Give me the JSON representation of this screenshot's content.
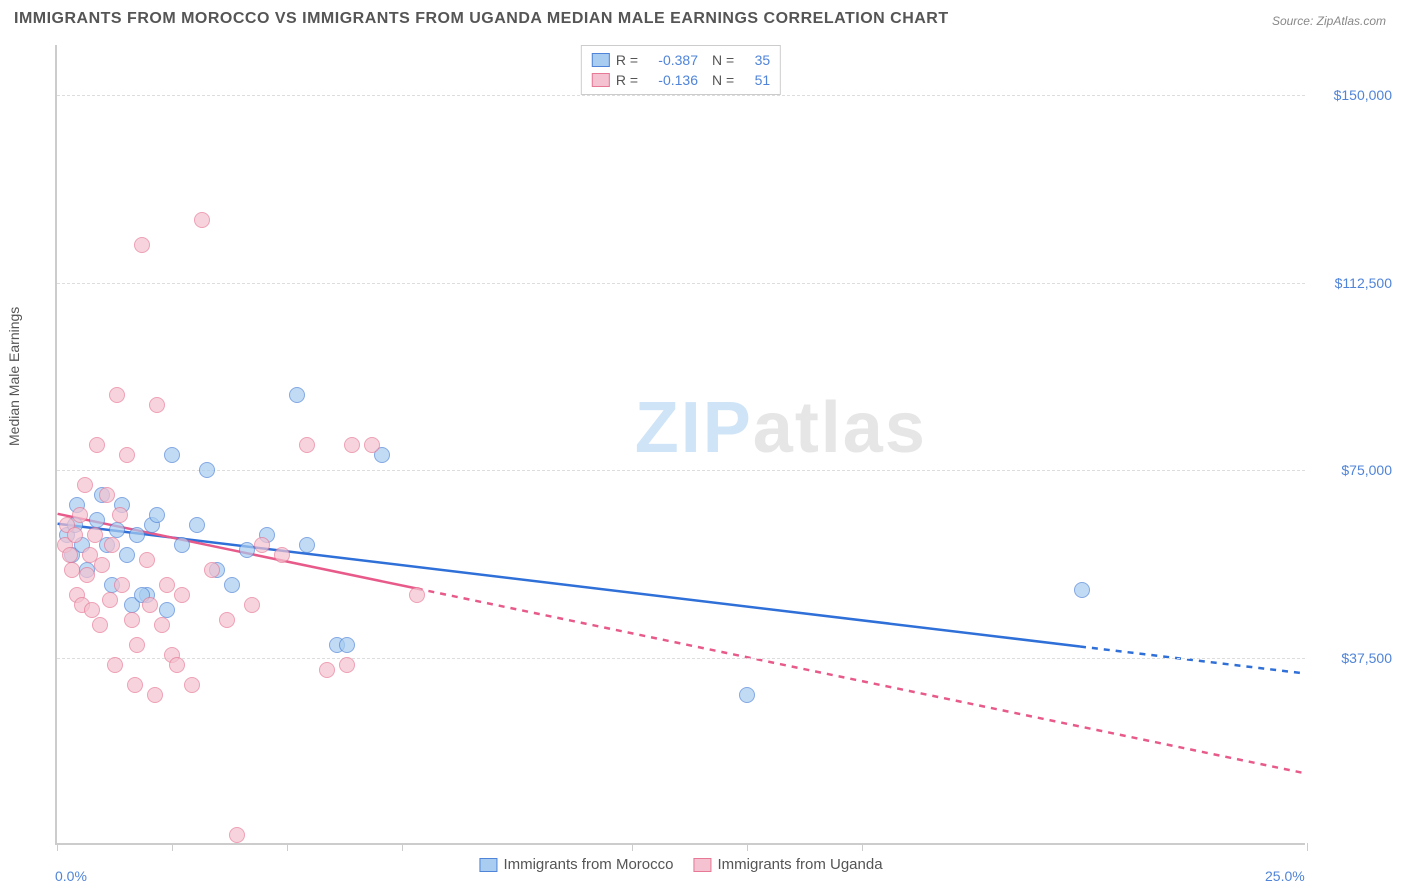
{
  "title": "IMMIGRANTS FROM MOROCCO VS IMMIGRANTS FROM UGANDA MEDIAN MALE EARNINGS CORRELATION CHART",
  "source": "Source: ZipAtlas.com",
  "watermark_zip": "ZIP",
  "watermark_atlas": "atlas",
  "chart": {
    "type": "scatter",
    "y_axis_label": "Median Male Earnings",
    "xlim": [
      0,
      25
    ],
    "ylim": [
      0,
      160000
    ],
    "x_tick_positions": [
      0,
      2.3,
      4.6,
      6.9,
      11.5,
      13.8,
      16.1,
      25
    ],
    "x_min_label": "0.0%",
    "x_max_label": "25.0%",
    "y_ticks": [
      {
        "value": 37500,
        "label": "$37,500"
      },
      {
        "value": 75000,
        "label": "$75,000"
      },
      {
        "value": 112500,
        "label": "$112,500"
      },
      {
        "value": 150000,
        "label": "$150,000"
      }
    ],
    "background_color": "#ffffff",
    "grid_color": "#dddddd",
    "axis_color": "#cccccc",
    "text_color": "#555555",
    "tick_label_color": "#5084d8",
    "series": [
      {
        "name": "Immigrants from Morocco",
        "R": "-0.387",
        "N": "35",
        "fill_color": "#a8cdf0",
        "stroke_color": "#5084d8",
        "marker_size": 16,
        "marker_opacity": 0.7,
        "trend": {
          "x1": 0,
          "y1": 64000,
          "x2": 25,
          "y2": 34000,
          "solid_until_x": 20.5,
          "color": "#2f6fd8",
          "width": 2.5
        },
        "points": [
          [
            0.2,
            62000
          ],
          [
            0.3,
            58000
          ],
          [
            0.4,
            68000
          ],
          [
            0.35,
            64000
          ],
          [
            0.5,
            60000
          ],
          [
            0.6,
            55000
          ],
          [
            0.8,
            65000
          ],
          [
            0.9,
            70000
          ],
          [
            1.0,
            60000
          ],
          [
            1.1,
            52000
          ],
          [
            1.2,
            63000
          ],
          [
            1.3,
            68000
          ],
          [
            1.4,
            58000
          ],
          [
            1.5,
            48000
          ],
          [
            1.6,
            62000
          ],
          [
            1.8,
            50000
          ],
          [
            1.9,
            64000
          ],
          [
            2.0,
            66000
          ],
          [
            2.2,
            47000
          ],
          [
            2.3,
            78000
          ],
          [
            2.5,
            60000
          ],
          [
            2.8,
            64000
          ],
          [
            3.0,
            75000
          ],
          [
            3.2,
            55000
          ],
          [
            3.5,
            52000
          ],
          [
            3.8,
            59000
          ],
          [
            4.2,
            62000
          ],
          [
            4.8,
            90000
          ],
          [
            5.0,
            60000
          ],
          [
            5.6,
            40000
          ],
          [
            5.8,
            40000
          ],
          [
            6.5,
            78000
          ],
          [
            13.8,
            30000
          ],
          [
            20.5,
            51000
          ],
          [
            1.7,
            50000
          ]
        ]
      },
      {
        "name": "Immigrants from Uganda",
        "R": "-0.136",
        "N": "51",
        "fill_color": "#f4c2d0",
        "stroke_color": "#e77896",
        "marker_size": 16,
        "marker_opacity": 0.7,
        "trend": {
          "x1": 0,
          "y1": 66000,
          "x2": 25,
          "y2": 14000,
          "solid_until_x": 7.2,
          "color": "#e75a8a",
          "width": 2.5
        },
        "points": [
          [
            0.15,
            60000
          ],
          [
            0.2,
            64000
          ],
          [
            0.25,
            58000
          ],
          [
            0.3,
            55000
          ],
          [
            0.35,
            62000
          ],
          [
            0.4,
            50000
          ],
          [
            0.45,
            66000
          ],
          [
            0.5,
            48000
          ],
          [
            0.55,
            72000
          ],
          [
            0.6,
            54000
          ],
          [
            0.65,
            58000
          ],
          [
            0.7,
            47000
          ],
          [
            0.75,
            62000
          ],
          [
            0.8,
            80000
          ],
          [
            0.85,
            44000
          ],
          [
            0.9,
            56000
          ],
          [
            1.0,
            70000
          ],
          [
            1.05,
            49000
          ],
          [
            1.1,
            60000
          ],
          [
            1.15,
            36000
          ],
          [
            1.2,
            90000
          ],
          [
            1.25,
            66000
          ],
          [
            1.3,
            52000
          ],
          [
            1.4,
            78000
          ],
          [
            1.5,
            45000
          ],
          [
            1.55,
            32000
          ],
          [
            1.6,
            40000
          ],
          [
            1.7,
            120000
          ],
          [
            1.8,
            57000
          ],
          [
            1.85,
            48000
          ],
          [
            1.95,
            30000
          ],
          [
            2.0,
            88000
          ],
          [
            2.1,
            44000
          ],
          [
            2.2,
            52000
          ],
          [
            2.3,
            38000
          ],
          [
            2.4,
            36000
          ],
          [
            2.5,
            50000
          ],
          [
            2.7,
            32000
          ],
          [
            2.9,
            125000
          ],
          [
            3.1,
            55000
          ],
          [
            3.4,
            45000
          ],
          [
            3.6,
            2000
          ],
          [
            3.9,
            48000
          ],
          [
            4.1,
            60000
          ],
          [
            4.5,
            58000
          ],
          [
            5.0,
            80000
          ],
          [
            5.4,
            35000
          ],
          [
            5.8,
            36000
          ],
          [
            5.9,
            80000
          ],
          [
            6.3,
            80000
          ],
          [
            7.2,
            50000
          ]
        ]
      }
    ],
    "legend_bottom": [
      {
        "label": "Immigrants from Morocco",
        "fill": "#a8cdf0",
        "stroke": "#5084d8"
      },
      {
        "label": "Immigrants from Uganda",
        "fill": "#f4c2d0",
        "stroke": "#e77896"
      }
    ]
  },
  "labels": {
    "R_eq": "R =",
    "N_eq": "N ="
  }
}
